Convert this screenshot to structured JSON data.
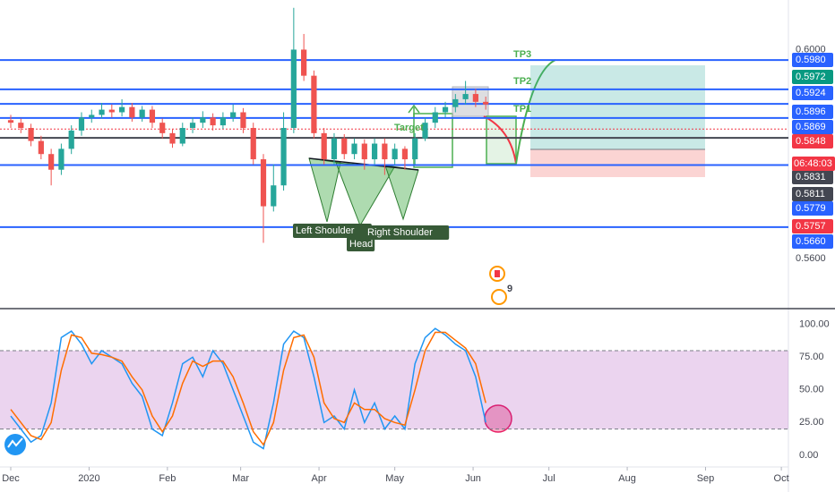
{
  "chart_data": [
    {
      "type": "candlestick",
      "x": [
        0,
        4,
        8,
        12,
        16,
        20,
        24,
        28,
        32,
        36,
        40,
        44,
        48,
        52,
        56,
        60,
        64,
        68,
        72,
        76,
        80,
        84,
        88,
        92,
        96,
        100,
        104,
        108,
        112,
        116,
        120,
        124,
        128,
        132,
        136,
        140,
        144,
        148,
        152,
        156,
        160,
        164,
        168,
        172,
        176,
        180,
        184,
        188
      ],
      "open": [
        0.5865,
        0.586,
        0.585,
        0.5825,
        0.58,
        0.577,
        0.581,
        0.5845,
        0.587,
        0.5875,
        0.5885,
        0.588,
        0.589,
        0.587,
        0.5885,
        0.586,
        0.584,
        0.582,
        0.585,
        0.586,
        0.587,
        0.5855,
        0.587,
        0.588,
        0.585,
        0.579,
        0.57,
        0.574,
        0.585,
        0.6,
        0.595,
        0.584,
        0.579,
        0.583,
        0.58,
        0.582,
        0.579,
        0.582,
        0.579,
        0.581,
        0.579,
        0.583,
        0.586,
        0.588,
        0.589,
        0.5905,
        0.5915,
        0.59
      ],
      "high": [
        0.5875,
        0.5868,
        0.5858,
        0.5835,
        0.581,
        0.582,
        0.5855,
        0.588,
        0.5885,
        0.5898,
        0.5895,
        0.5905,
        0.5898,
        0.5892,
        0.5892,
        0.5868,
        0.5848,
        0.586,
        0.587,
        0.5882,
        0.5878,
        0.588,
        0.5895,
        0.5888,
        0.586,
        0.58,
        0.578,
        0.588,
        0.608,
        0.603,
        0.596,
        0.585,
        0.584,
        0.5838,
        0.583,
        0.5828,
        0.583,
        0.583,
        0.582,
        0.5815,
        0.584,
        0.587,
        0.589,
        0.59,
        0.5915,
        0.594,
        0.5925,
        0.591
      ],
      "low": [
        0.585,
        0.584,
        0.5815,
        0.579,
        0.574,
        0.576,
        0.58,
        0.5835,
        0.586,
        0.5868,
        0.587,
        0.5872,
        0.5862,
        0.5862,
        0.585,
        0.583,
        0.5812,
        0.5815,
        0.584,
        0.585,
        0.5845,
        0.5848,
        0.5862,
        0.584,
        0.578,
        0.563,
        0.569,
        0.573,
        0.584,
        0.594,
        0.583,
        0.578,
        0.578,
        0.579,
        0.579,
        0.577,
        0.578,
        0.576,
        0.578,
        0.577,
        0.578,
        0.5825,
        0.585,
        0.587,
        0.588,
        0.5895,
        0.589,
        0.5885
      ],
      "close": [
        0.586,
        0.585,
        0.5825,
        0.58,
        0.577,
        0.581,
        0.5845,
        0.587,
        0.5875,
        0.5885,
        0.588,
        0.589,
        0.587,
        0.5885,
        0.586,
        0.584,
        0.582,
        0.585,
        0.586,
        0.587,
        0.5855,
        0.587,
        0.588,
        0.585,
        0.579,
        0.57,
        0.574,
        0.585,
        0.6,
        0.595,
        0.584,
        0.579,
        0.583,
        0.58,
        0.582,
        0.579,
        0.582,
        0.579,
        0.581,
        0.579,
        0.583,
        0.586,
        0.588,
        0.589,
        0.5905,
        0.5915,
        0.59,
        0.5895
      ],
      "up_color": "#26a69a",
      "down_color": "#ef5350",
      "xlim": [
        -4.26,
        307.8
      ],
      "ylim": [
        0.5504,
        0.6095
      ],
      "yticks": [
        {
          "value": 0.56,
          "label": "0.5600"
        },
        {
          "value": 0.6,
          "label": "0.6000"
        }
      ],
      "price_labels": [
        {
          "value": 0.598,
          "label": "0.5980",
          "color": "#2962ff",
          "line": "solid"
        },
        {
          "value": 0.5972,
          "label": "0.5972",
          "color": "#089981",
          "line": "none"
        },
        {
          "value": 0.5924,
          "label": "0.5924",
          "color": "#2962ff",
          "line": "solid"
        },
        {
          "value": 0.5896,
          "label": "0.5896",
          "color": "#2962ff",
          "line": "solid"
        },
        {
          "value": 0.5869,
          "label": "0.5869",
          "color": "#2962ff",
          "line": "solid"
        },
        {
          "value": 0.5848,
          "label": "0.5848",
          "color": "#f23645",
          "line": "dashed"
        },
        {
          "value": 0.5831,
          "label": "0.5831",
          "color": "#434651",
          "line": "solid"
        },
        {
          "value": 0.5811,
          "label": "0.5811",
          "color": "#434651",
          "line": "none"
        },
        {
          "value": 0.5779,
          "label": "0.5779",
          "color": "#2962ff",
          "line": "solid"
        },
        {
          "value": 0.5757,
          "label": "0.5757",
          "color": "#f23645",
          "line": "none"
        },
        {
          "value": 0.566,
          "label": "0.5660",
          "color": "#2962ff",
          "line": "solid"
        }
      ],
      "countdown": "06:48:03",
      "annotations": [
        "TP3",
        "TP2",
        "TP1",
        "Target",
        "Left Shoulder",
        "Head",
        "Right Shoulder",
        "9"
      ],
      "xticks": [
        {
          "value": 0,
          "label": "Dec"
        },
        {
          "value": 31,
          "label": "2020"
        },
        {
          "value": 62,
          "label": "Feb"
        },
        {
          "value": 91,
          "label": "Mar"
        },
        {
          "value": 122,
          "label": "Apr"
        },
        {
          "value": 152,
          "label": "May"
        },
        {
          "value": 183,
          "label": "Jun"
        },
        {
          "value": 213,
          "label": "Jul"
        },
        {
          "value": 244,
          "label": "Aug"
        },
        {
          "value": 275,
          "label": "Sep"
        },
        {
          "value": 305,
          "label": "Oct"
        }
      ]
    },
    {
      "type": "line",
      "x": [
        0,
        4,
        8,
        12,
        16,
        20,
        24,
        28,
        32,
        36,
        40,
        44,
        48,
        52,
        56,
        60,
        64,
        68,
        72,
        76,
        80,
        84,
        88,
        92,
        96,
        100,
        104,
        108,
        112,
        116,
        120,
        124,
        128,
        132,
        136,
        140,
        144,
        148,
        152,
        156,
        160,
        164,
        168,
        172,
        176,
        180,
        184,
        188
      ],
      "series": [
        {
          "color": "#2196f3",
          "values": [
            30,
            20,
            10,
            15,
            40,
            90,
            95,
            85,
            70,
            80,
            75,
            70,
            55,
            45,
            20,
            15,
            40,
            70,
            75,
            60,
            80,
            70,
            50,
            30,
            10,
            5,
            40,
            85,
            95,
            90,
            60,
            25,
            30,
            20,
            50,
            25,
            40,
            20,
            30,
            20,
            70,
            90,
            97,
            92,
            85,
            80,
            60,
            25
          ]
        },
        {
          "color": "#ff6d00",
          "values": [
            35,
            25,
            15,
            12,
            25,
            65,
            92,
            90,
            78,
            77,
            75,
            72,
            60,
            50,
            30,
            18,
            30,
            55,
            72,
            68,
            72,
            72,
            60,
            40,
            18,
            8,
            25,
            65,
            90,
            92,
            75,
            40,
            28,
            25,
            40,
            35,
            35,
            28,
            25,
            23,
            50,
            80,
            94,
            94,
            88,
            82,
            70,
            40
          ]
        }
      ],
      "band": [
        20,
        80
      ],
      "band_color": "rgba(156,39,176,0.2)",
      "xlim": [
        -4.26,
        307.8
      ],
      "ylim": [
        -9,
        110.8
      ],
      "yticks": [
        {
          "value": 100,
          "label": "100.00"
        },
        {
          "value": 75,
          "label": "75.00"
        },
        {
          "value": 50,
          "label": "50.00"
        },
        {
          "value": 25,
          "label": "25.00"
        },
        {
          "value": 0,
          "label": "0.00"
        }
      ]
    }
  ]
}
